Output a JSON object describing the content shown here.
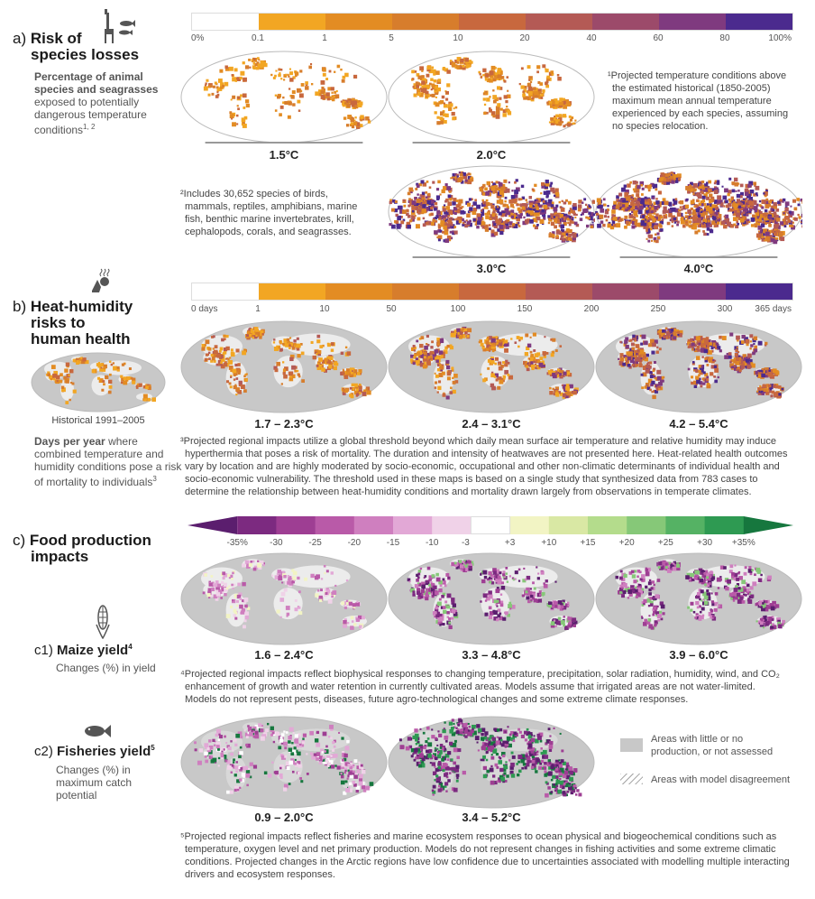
{
  "sections": {
    "a": {
      "letter": "a)",
      "title_line1": "Risk of",
      "title_line2": "species losses",
      "desc_bold_1": "Percentage of animal",
      "desc_bold_2": "species and seagrasses",
      "desc_1": "exposed to potentially",
      "desc_2": "dangerous temperature",
      "desc_3": "conditions",
      "desc_sup": "1, 2",
      "colorbar_ticks": [
        "0%",
        "0.1",
        "1",
        "5",
        "10",
        "20",
        "40",
        "60",
        "80",
        "100%"
      ],
      "colorbar_colors": [
        "#ffffff",
        "#f2a623",
        "#e38c23",
        "#d77d2c",
        "#c8683e",
        "#b45a55",
        "#9c4a6a",
        "#7f3a7f",
        "#4b2a8e"
      ],
      "maps": [
        "1.5°C",
        "2.0°C",
        "3.0°C",
        "4.0°C"
      ],
      "note1": [
        "¹Projected temperature conditions above",
        "the estimated historical (1850-2005)",
        "maximum mean annual temperature",
        "experienced by each species, assuming",
        "no species relocation."
      ],
      "note2": [
        "²Includes 30,652 species of birds,",
        "mammals, reptiles, amphibians, marine",
        "fish, benthic marine invertebrates, krill,",
        "cephalopods, corals, and seagrasses."
      ]
    },
    "b": {
      "letter": "b)",
      "title_line1": "Heat-humidity",
      "title_line2": "risks to",
      "title_line3": "human health",
      "historical_label": "Historical 1991–2005",
      "desc_bold": "Days per year",
      "desc_rest_1": " where",
      "desc_2": "combined temperature and",
      "desc_3": "humidity conditions pose a risk",
      "desc_4": "of mortality to individuals",
      "desc_sup": "3",
      "colorbar_ticks": [
        "0 days",
        "1",
        "10",
        "50",
        "100",
        "150",
        "200",
        "250",
        "300",
        "365 days"
      ],
      "colorbar_colors": [
        "#ffffff",
        "#f2a623",
        "#e38c23",
        "#d77d2c",
        "#c8683e",
        "#b45a55",
        "#9c4a6a",
        "#7f3a7f",
        "#4b2a8e"
      ],
      "maps": [
        "1.7 – 2.3°C",
        "2.4 – 3.1°C",
        "4.2 – 5.4°C"
      ],
      "note": [
        "³Projected regional impacts utilize a global threshold beyond which daily mean surface air temperature and relative humidity may induce",
        "hyperthermia that poses a risk of mortality. The duration and intensity of heatwaves are not presented here. Heat-related health outcomes",
        "vary by location and are highly moderated by socio-economic, occupational and other non-climatic determinants of individual health and",
        "socio-economic vulnerability. The threshold used in these maps is based on a single study that synthesized data from 783 cases to",
        "determine the relationship between heat-humidity conditions and mortality drawn largely from observations in temperate climates."
      ]
    },
    "c": {
      "letter": "c)",
      "title_line1": "Food production",
      "title_line2": "impacts",
      "colorbar_ticks": [
        "-35%",
        "-30",
        "-25",
        "-20",
        "-15",
        "-10",
        "-3",
        "+3",
        "+10",
        "+15",
        "+20",
        "+25",
        "+30",
        "+35%"
      ],
      "colorbar_colors": [
        "#5b1e6e",
        "#7c2a80",
        "#9e3e93",
        "#b95aa8",
        "#cf7fbf",
        "#e2a8d6",
        "#f0d2e8",
        "#ffffff",
        "#f2f4c4",
        "#d9e8a4",
        "#b4dc8c",
        "#86c878",
        "#55b264",
        "#2e9a52",
        "#16773e"
      ],
      "c1": {
        "label": "c1)",
        "title": "Maize yield",
        "sup": "4",
        "desc_bold": "Changes (%) in yield",
        "maps": [
          "1.6 – 2.4°C",
          "3.3 – 4.8°C",
          "3.9 – 6.0°C"
        ],
        "note": [
          "⁴Projected regional impacts reflect biophysical responses to changing temperature, precipitation, solar radiation, humidity, wind, and CO₂",
          "enhancement of growth and water retention in currently cultivated areas. Models assume that irrigated areas are not water-limited.",
          "Models do not represent pests, diseases, future agro-technological changes and some extreme climate responses."
        ]
      },
      "c2": {
        "label": "c2)",
        "title": "Fisheries yield",
        "sup": "5",
        "desc_1": "Changes (%) in",
        "desc_2": "maximum catch",
        "desc_3": "potential",
        "maps": [
          "0.9 – 2.0°C",
          "3.4 – 5.2°C"
        ],
        "note": [
          "⁵Projected regional impacts reflect fisheries and marine ecosystem responses to ocean physical and biogeochemical conditions such as",
          "temperature, oxygen level and net primary production. Models do not represent changes in fishing activities and some extreme climatic",
          "conditions. Projected changes in the Arctic regions have low confidence due to uncertainties associated with modelling multiple interacting",
          "drivers and ecosystem responses."
        ]
      },
      "legend_grey_1": "Areas with little or no",
      "legend_grey_2": "production, or not assessed",
      "legend_hatch": "Areas with model disagreement"
    }
  }
}
